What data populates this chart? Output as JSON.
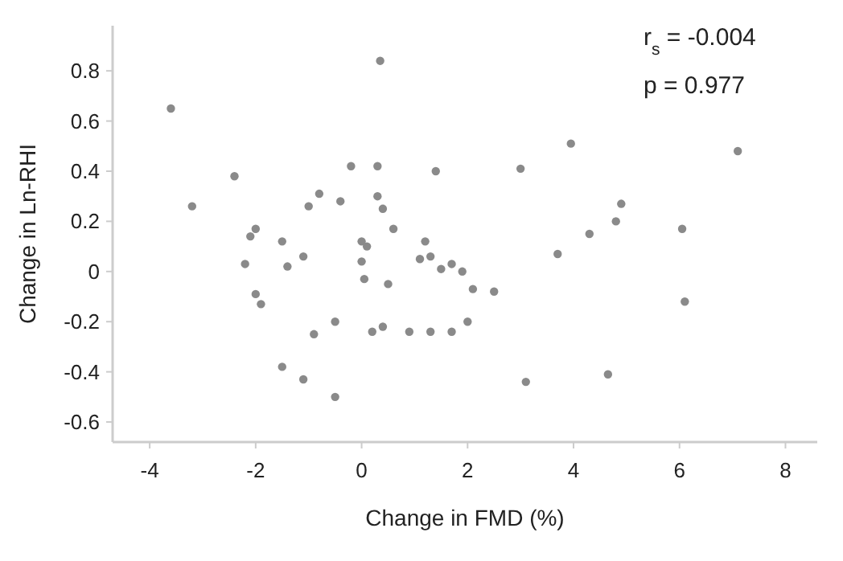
{
  "chart_data": {
    "type": "scatter",
    "xlabel": "Change in FMD (%)",
    "ylabel": "Change in Ln-RHI",
    "annotations": [
      "r$_{s}$ = -0.004",
      "p = 0.977"
    ],
    "xlim": [
      -4.7,
      8.6
    ],
    "xticks": [
      -4,
      -2,
      0,
      2,
      4,
      6,
      8
    ],
    "ylim": [
      -0.68,
      0.98
    ],
    "yticks": [
      -0.6,
      -0.4,
      -0.2,
      0,
      0.2,
      0.4,
      0.6,
      0.8
    ],
    "grid": false,
    "marker": "circle",
    "series": [
      {
        "color": "#8a8a8a",
        "x": [
          -3.6,
          -3.2,
          -2.4,
          -2.2,
          -2.1,
          -2.0,
          -2.0,
          -1.9,
          -1.5,
          -1.4,
          -1.5,
          -1.1,
          -1.1,
          -1.0,
          -0.9,
          -0.8,
          -0.5,
          -0.5,
          -0.4,
          -0.2,
          0,
          0,
          0.05,
          0.1,
          0.2,
          0.3,
          0.3,
          0.4,
          0.4,
          0.35,
          0.5,
          0.6,
          0.9,
          1.1,
          1.2,
          1.3,
          1.3,
          1.4,
          1.5,
          1.7,
          1.7,
          1.9,
          2.0,
          2.1,
          2.5,
          3.0,
          3.1,
          3.7,
          3.95,
          4.3,
          4.65,
          4.8,
          4.9,
          6.05,
          6.1,
          7.1
        ],
        "values": [
          0.65,
          0.26,
          0.38,
          0.03,
          0.14,
          0.17,
          -0.09,
          -0.13,
          0.12,
          0.02,
          -0.38,
          -0.43,
          0.06,
          0.26,
          -0.25,
          0.31,
          -0.2,
          -0.5,
          0.28,
          0.42,
          0.12,
          0.04,
          -0.03,
          0.1,
          -0.24,
          0.42,
          0.3,
          0.25,
          -0.22,
          0.84,
          -0.05,
          0.17,
          -0.24,
          0.05,
          0.12,
          -0.24,
          0.06,
          0.4,
          0.01,
          0.03,
          -0.24,
          0,
          -0.2,
          -0.07,
          -0.08,
          0.41,
          -0.44,
          0.07,
          0.51,
          0.15,
          -0.41,
          0.2,
          0.27,
          0.17,
          -0.12,
          0.48
        ]
      }
    ]
  }
}
